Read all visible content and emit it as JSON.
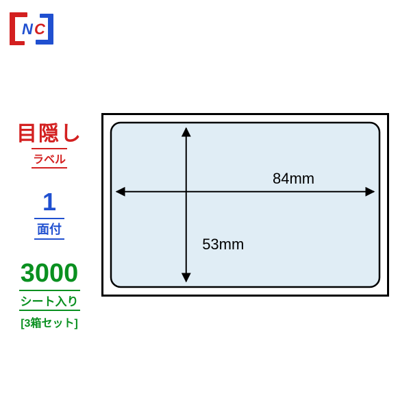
{
  "logo": {
    "left_color": "#d32020",
    "right_color": "#2050d0",
    "text": "NC"
  },
  "left": {
    "title_main": "目隠し",
    "title_sub": "ラベル",
    "title_color": "#d32020",
    "face_num": "1",
    "face_label": "面付",
    "face_color": "#2050d0",
    "sheets_num": "3000",
    "sheets_label": "シート入り",
    "box_set": "[3箱セット]",
    "sheets_color": "#0a9020"
  },
  "diagram": {
    "outer_width": 420,
    "outer_height": 268,
    "outer_stroke": "#000000",
    "outer_stroke_width": 3,
    "outer_fill": "#ffffff",
    "inner_margin": 14,
    "inner_radius": 14,
    "inner_fill": "#e0edf5",
    "inner_stroke": "#000000",
    "inner_stroke_width": 2.5,
    "width_label": "84mm",
    "height_label": "53mm",
    "label_fontsize": 22,
    "arrow_stroke": "#000000",
    "arrow_width": 2
  }
}
